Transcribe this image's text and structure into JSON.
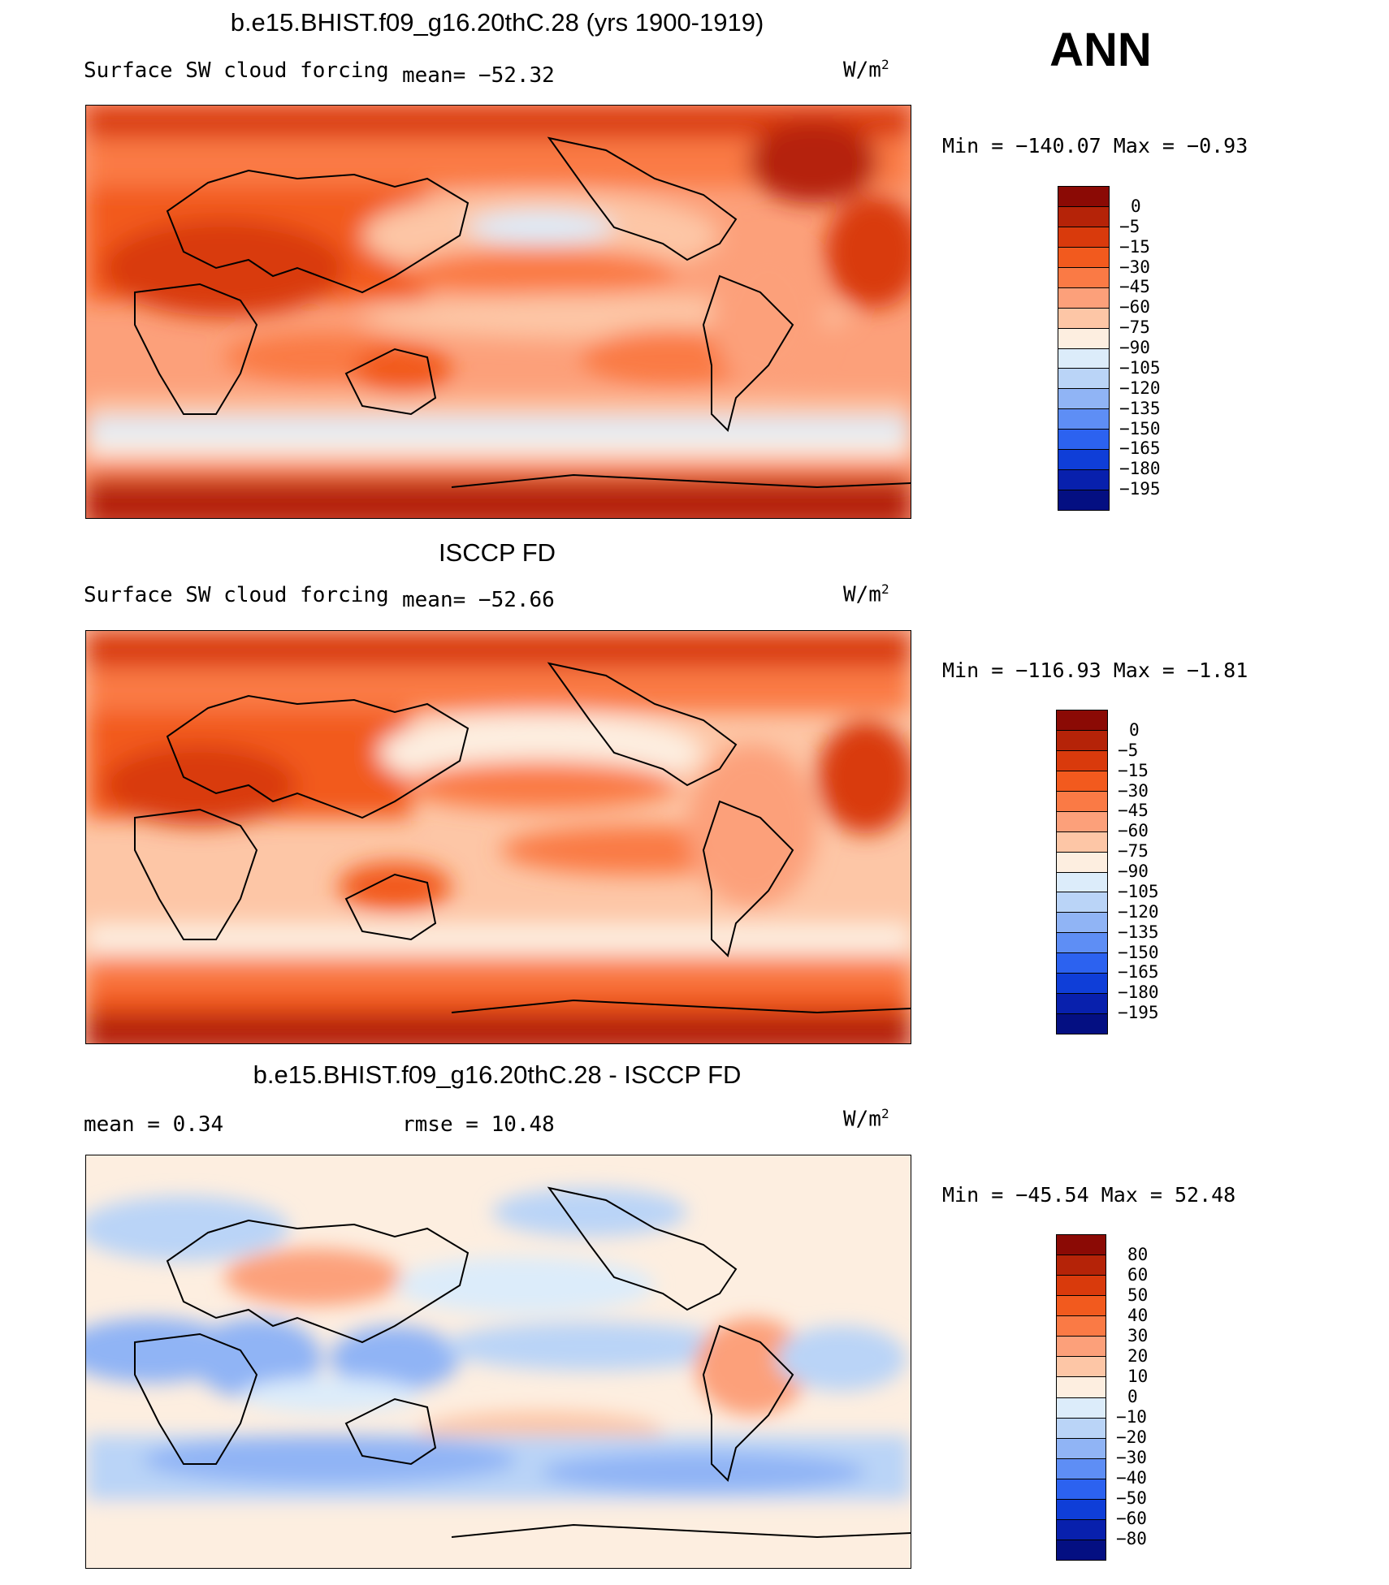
{
  "season": "ANN",
  "panels": [
    {
      "title": "b.e15.BHIST.f09_g16.20thC.28 (yrs 1900-1919)",
      "variable": "Surface SW cloud forcing",
      "stat1": "mean= −52.32",
      "stat2": "",
      "units": "W/m",
      "units_sup": "2",
      "min_max": "Min  =  −140.07  Max  =   −0.93",
      "legend_labels": [
        "0",
        "−5",
        "−15",
        "−30",
        "−45",
        "−60",
        "−75",
        "−90",
        "−105",
        "−120",
        "−135",
        "−150",
        "−165",
        "−180",
        "−195"
      ],
      "legend_colors": [
        "#8b0a05",
        "#b52308",
        "#d93a0c",
        "#f25a1e",
        "#fa7a45",
        "#fca07a",
        "#fdc6a6",
        "#fdeee0",
        "#dcecfa",
        "#bad4f7",
        "#90b4f5",
        "#5e8ef5",
        "#2c62f0",
        "#0f3ed8",
        "#0820ad",
        "#040f82"
      ]
    },
    {
      "title": "ISCCP FD",
      "variable": "Surface SW cloud forcing",
      "stat1": "mean= −52.66",
      "stat2": "",
      "units": "W/m",
      "units_sup": "2",
      "min_max": "Min  =  −116.93  Max  =   −1.81",
      "legend_labels": [
        "0",
        "−5",
        "−15",
        "−30",
        "−45",
        "−60",
        "−75",
        "−90",
        "−105",
        "−120",
        "−135",
        "−150",
        "−165",
        "−180",
        "−195"
      ],
      "legend_colors": [
        "#8b0a05",
        "#b52308",
        "#d93a0c",
        "#f25a1e",
        "#fa7a45",
        "#fca07a",
        "#fdc6a6",
        "#fdeee0",
        "#dcecfa",
        "#bad4f7",
        "#90b4f5",
        "#5e8ef5",
        "#2c62f0",
        "#0f3ed8",
        "#0820ad",
        "#040f82"
      ]
    },
    {
      "title": "b.e15.BHIST.f09_g16.20thC.28 - ISCCP FD",
      "variable": "",
      "stat1": "mean  =    0.34",
      "stat2": "rmse  =   10.48",
      "units": "W/m",
      "units_sup": "2",
      "min_max": "Min  =  −45.54  Max  =   52.48",
      "legend_labels": [
        "80",
        "60",
        "50",
        "40",
        "30",
        "20",
        "10",
        "0",
        "−10",
        "−20",
        "−30",
        "−40",
        "−50",
        "−60",
        "−80"
      ],
      "legend_colors": [
        "#8b0a05",
        "#b52308",
        "#d93a0c",
        "#f25a1e",
        "#fa7a45",
        "#fca07a",
        "#fdc6a6",
        "#fdeee0",
        "#dcecfa",
        "#bad4f7",
        "#90b4f5",
        "#5e8ef5",
        "#2c62f0",
        "#0f3ed8",
        "#0820ad",
        "#040f82"
      ]
    }
  ]
}
